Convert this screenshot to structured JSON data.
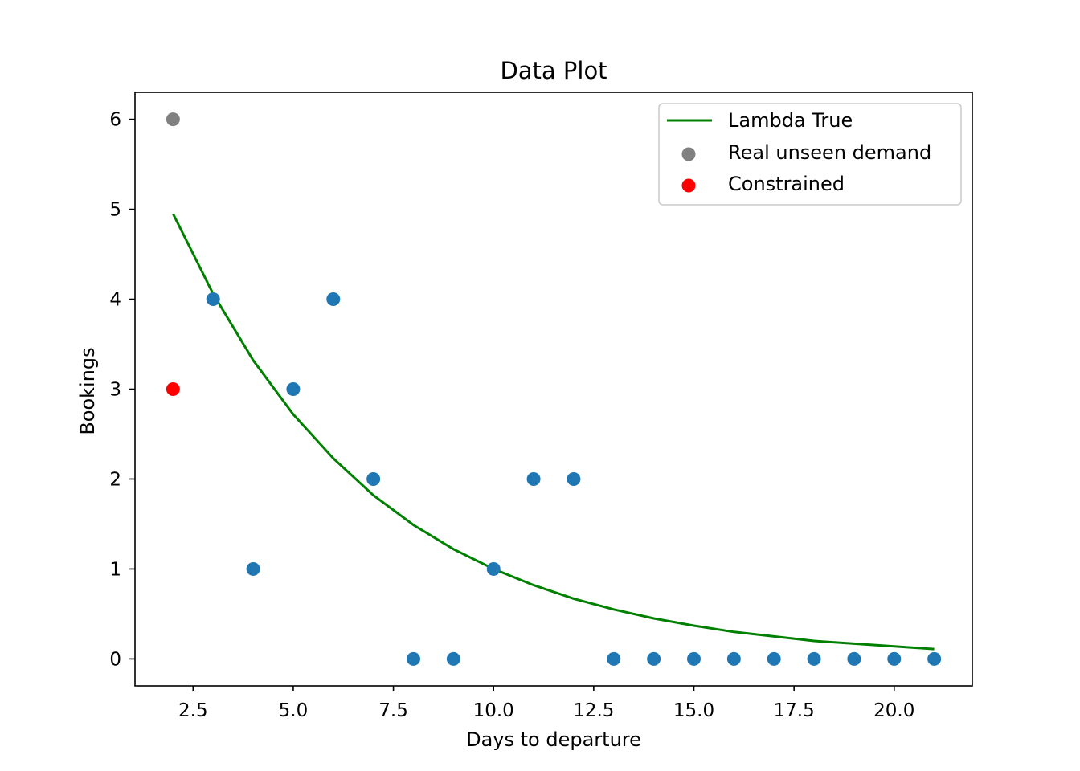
{
  "chart_data": {
    "type": "scatter",
    "title": "Data Plot",
    "xlabel": "Days to departure",
    "ylabel": "Bookings",
    "xlim": [
      1.05,
      21.95
    ],
    "ylim": [
      -0.3,
      6.3
    ],
    "xticks": [
      2.5,
      5.0,
      7.5,
      10.0,
      12.5,
      15.0,
      17.5,
      20.0
    ],
    "xtick_labels": [
      "2.5",
      "5.0",
      "7.5",
      "10.0",
      "12.5",
      "15.0",
      "17.5",
      "20.0"
    ],
    "yticks": [
      0,
      1,
      2,
      3,
      4,
      5,
      6
    ],
    "ytick_labels": [
      "0",
      "1",
      "2",
      "3",
      "4",
      "5",
      "6"
    ],
    "grid": false,
    "legend_position": "top-right",
    "series": [
      {
        "name": "Lambda True",
        "kind": "line",
        "color": "#008000",
        "x": [
          2,
          3,
          4,
          5,
          6,
          7,
          8,
          9,
          10,
          11,
          12,
          13,
          14,
          15,
          16,
          17,
          18,
          19,
          20,
          21
        ],
        "y": [
          4.95,
          4.06,
          3.32,
          2.72,
          2.23,
          1.82,
          1.49,
          1.22,
          1.0,
          0.82,
          0.67,
          0.55,
          0.45,
          0.37,
          0.3,
          0.25,
          0.2,
          0.17,
          0.14,
          0.11
        ]
      },
      {
        "name": "",
        "kind": "scatter",
        "color": "#1f77b4",
        "x": [
          3,
          4,
          5,
          6,
          7,
          8,
          9,
          10,
          11,
          12,
          13,
          14,
          15,
          16,
          17,
          18,
          19,
          20,
          21
        ],
        "y": [
          4,
          1,
          3,
          4,
          2,
          0,
          0,
          1,
          2,
          2,
          0,
          0,
          0,
          0,
          0,
          0,
          0,
          0,
          0
        ]
      },
      {
        "name": "Real unseen demand",
        "kind": "scatter",
        "color": "#808080",
        "x": [
          2
        ],
        "y": [
          6
        ]
      },
      {
        "name": "Constrained",
        "kind": "scatter",
        "color": "#ff0000",
        "x": [
          2
        ],
        "y": [
          3
        ]
      }
    ],
    "legend": [
      "Lambda True",
      "Real unseen demand",
      "Constrained"
    ]
  }
}
